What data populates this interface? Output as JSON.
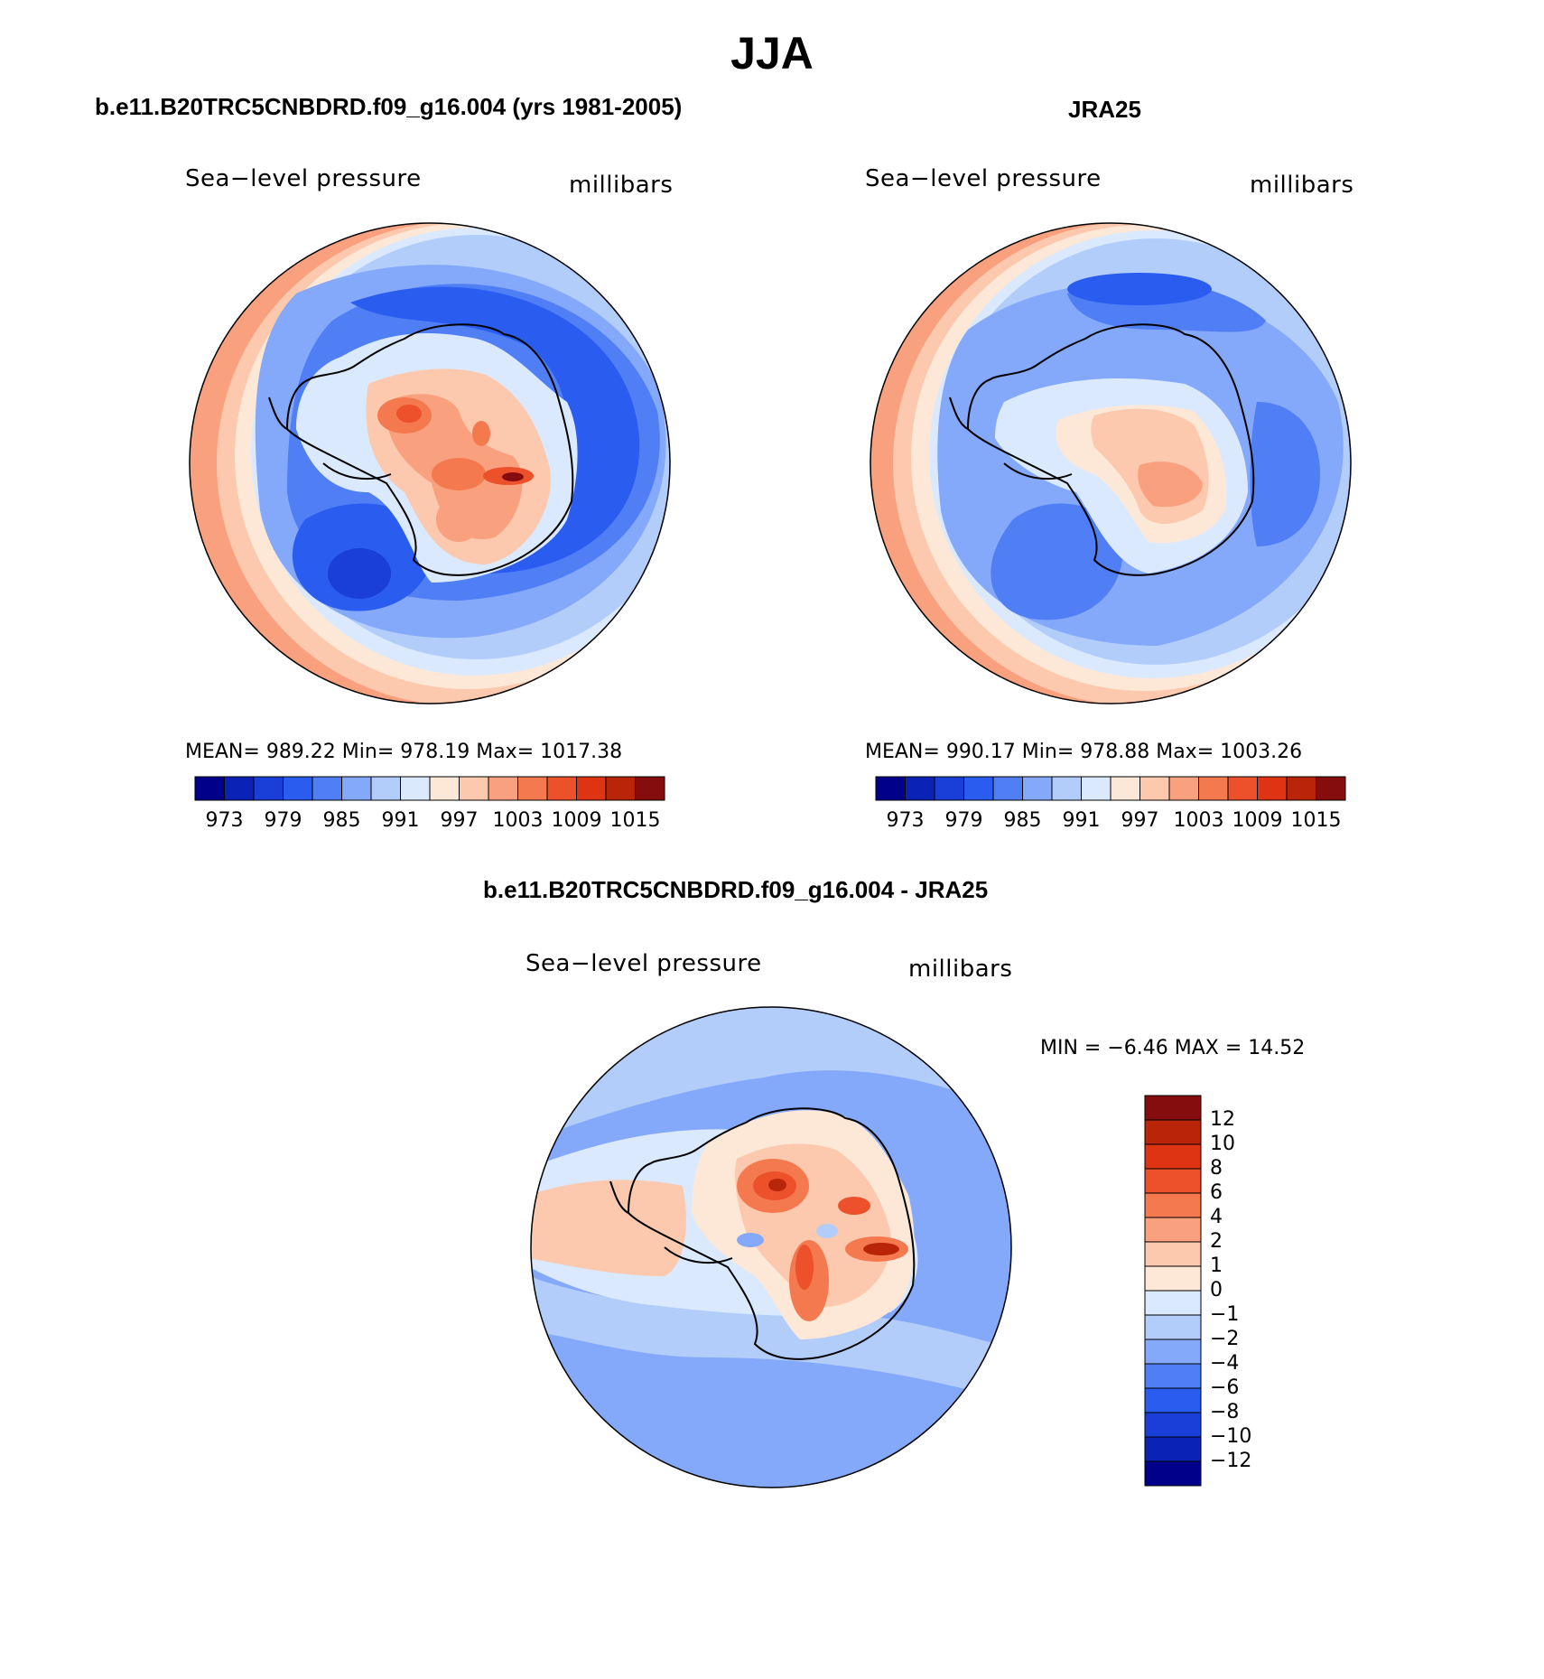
{
  "figure": {
    "title": "JJA"
  },
  "panels": [
    {
      "heading": "b.e11.B20TRC5CNBDRD.f09_g16.004 (yrs 1981-2005)",
      "variable": "Sea−level pressure",
      "units": "millibars",
      "stats": "MEAN=  989.22   Min=  978.19   Max=  1017.38",
      "colorbar_labels": [
        "973",
        "979",
        "985",
        "991",
        "997",
        "1003",
        "1009",
        "1015"
      ]
    },
    {
      "heading": "JRA25",
      "variable": "Sea−level pressure",
      "units": "millibars",
      "stats": "MEAN=  990.17   Min=  978.88   Max=  1003.26",
      "colorbar_labels": [
        "973",
        "979",
        "985",
        "991",
        "997",
        "1003",
        "1009",
        "1015"
      ]
    },
    {
      "heading": "b.e11.B20TRC5CNBDRD.f09_g16.004 - JRA25",
      "variable": "Sea−level pressure",
      "units": "millibars",
      "stats": "MIN =   −6.46  MAX =   14.52",
      "colorbar_labels": [
        "12",
        "10",
        "8",
        "6",
        "4",
        "2",
        "1",
        "0",
        "−1",
        "−2",
        "−4",
        "−6",
        "−8",
        "−10",
        "−12"
      ]
    }
  ],
  "colors": {
    "abs_scale": [
      "#00008b",
      "#0a22b6",
      "#1a3fd9",
      "#2a5cf0",
      "#4f7ef5",
      "#84a8fa",
      "#b3cdfb",
      "#dae9fd",
      "#fde8d8",
      "#fcc9ae",
      "#f9a07e",
      "#f5794f",
      "#ec512c",
      "#df3413",
      "#b82508",
      "#850d0d"
    ],
    "diff_scale": [
      "#850d0d",
      "#b82508",
      "#df3413",
      "#ec512c",
      "#f5794f",
      "#f9a07e",
      "#fcc9ae",
      "#fde8d8",
      "#dae9fd",
      "#b3cdfb",
      "#84a8fa",
      "#4f7ef5",
      "#2a5cf0",
      "#1a3fd9",
      "#0a22b6",
      "#00008b"
    ]
  }
}
